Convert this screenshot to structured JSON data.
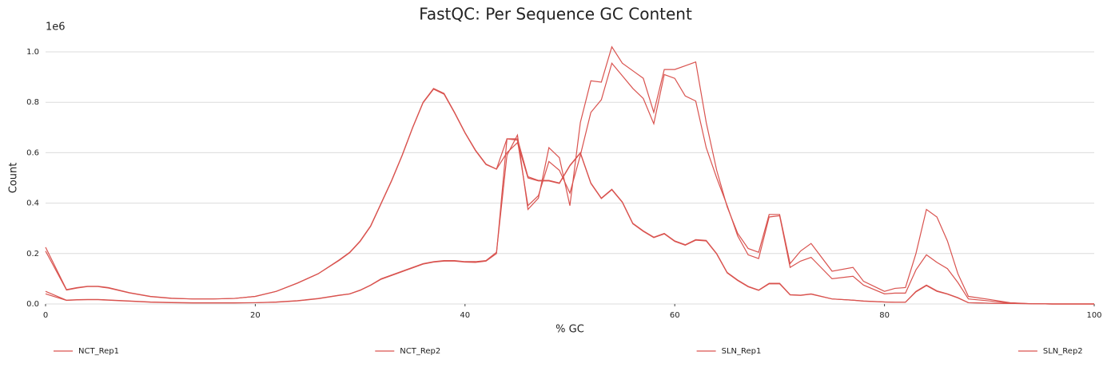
{
  "chart_data": {
    "type": "line",
    "title": "FastQC: Per Sequence GC Content",
    "xlabel": "% GC",
    "ylabel": "Count",
    "y_offset_label": "1e6",
    "x": [
      0,
      2,
      3,
      4,
      5,
      6,
      8,
      10,
      12,
      14,
      16,
      18,
      20,
      22,
      24,
      26,
      28,
      29,
      30,
      31,
      32,
      33,
      34,
      35,
      36,
      37,
      38,
      39,
      40,
      41,
      42,
      43,
      44,
      45,
      46,
      47,
      48,
      49,
      50,
      51,
      52,
      53,
      54,
      55,
      56,
      57,
      58,
      59,
      60,
      61,
      62,
      63,
      64,
      65,
      66,
      67,
      68,
      69,
      70,
      71,
      72,
      73,
      75,
      77,
      78,
      80,
      81,
      82,
      83,
      84,
      85,
      86,
      87,
      88,
      90,
      92,
      94,
      96,
      100
    ],
    "series": [
      {
        "name": "NCT_Rep1",
        "color": "#d9534f",
        "values": [
          0.225,
          0.057,
          0.065,
          0.07,
          0.07,
          0.065,
          0.045,
          0.03,
          0.023,
          0.02,
          0.02,
          0.022,
          0.03,
          0.05,
          0.083,
          0.12,
          0.175,
          0.205,
          0.25,
          0.31,
          0.4,
          0.49,
          0.59,
          0.7,
          0.8,
          0.855,
          0.835,
          0.76,
          0.68,
          0.61,
          0.555,
          0.535,
          0.655,
          0.655,
          0.505,
          0.49,
          0.49,
          0.48,
          0.55,
          0.6,
          0.48,
          0.42,
          0.455,
          0.405,
          0.32,
          0.29,
          0.265,
          0.28,
          0.25,
          0.235,
          0.255,
          0.252,
          0.2,
          0.125,
          0.095,
          0.07,
          0.055,
          0.082,
          0.082,
          0.037,
          0.035,
          0.04,
          0.02,
          0.015,
          0.012,
          0.008,
          0.007,
          0.007,
          0.05,
          0.075,
          0.052,
          0.04,
          0.025,
          0.005,
          0.003,
          0.002,
          0.001,
          0,
          0
        ]
      },
      {
        "name": "NCT_Rep2",
        "color": "#d9534f",
        "values": [
          0.21,
          0.055,
          0.063,
          0.069,
          0.069,
          0.063,
          0.044,
          0.029,
          0.022,
          0.02,
          0.02,
          0.022,
          0.03,
          0.05,
          0.082,
          0.12,
          0.173,
          0.203,
          0.248,
          0.308,
          0.398,
          0.488,
          0.588,
          0.698,
          0.798,
          0.852,
          0.832,
          0.758,
          0.678,
          0.608,
          0.553,
          0.535,
          0.6,
          0.64,
          0.5,
          0.488,
          0.488,
          0.478,
          0.548,
          0.598,
          0.478,
          0.418,
          0.453,
          0.403,
          0.318,
          0.288,
          0.263,
          0.278,
          0.248,
          0.233,
          0.253,
          0.25,
          0.198,
          0.123,
          0.093,
          0.068,
          0.054,
          0.08,
          0.08,
          0.036,
          0.034,
          0.039,
          0.02,
          0.015,
          0.011,
          0.008,
          0.007,
          0.007,
          0.048,
          0.073,
          0.05,
          0.039,
          0.024,
          0.005,
          0.003,
          0.002,
          0.001,
          0,
          0
        ]
      },
      {
        "name": "SLN_Rep1",
        "color": "#d9534f",
        "values": [
          0.05,
          0.015,
          0.017,
          0.018,
          0.018,
          0.016,
          0.012,
          0.008,
          0.006,
          0.005,
          0.005,
          0.005,
          0.005,
          0.008,
          0.013,
          0.022,
          0.035,
          0.04,
          0.055,
          0.075,
          0.1,
          0.115,
          0.13,
          0.145,
          0.16,
          0.168,
          0.172,
          0.172,
          0.168,
          0.168,
          0.172,
          0.205,
          0.59,
          0.67,
          0.375,
          0.42,
          0.62,
          0.58,
          0.39,
          0.72,
          0.885,
          0.88,
          1.02,
          0.955,
          0.925,
          0.895,
          0.76,
          0.93,
          0.93,
          0.945,
          0.96,
          0.72,
          0.53,
          0.385,
          0.28,
          0.22,
          0.205,
          0.355,
          0.355,
          0.16,
          0.21,
          0.24,
          0.13,
          0.145,
          0.09,
          0.05,
          0.062,
          0.065,
          0.2,
          0.375,
          0.345,
          0.25,
          0.12,
          0.03,
          0.018,
          0.005,
          0.001,
          0,
          0
        ]
      },
      {
        "name": "SLN_Rep2",
        "color": "#d9534f",
        "values": [
          0.04,
          0.014,
          0.016,
          0.017,
          0.017,
          0.015,
          0.011,
          0.007,
          0.005,
          0.004,
          0.004,
          0.004,
          0.005,
          0.007,
          0.012,
          0.021,
          0.034,
          0.04,
          0.054,
          0.074,
          0.098,
          0.113,
          0.128,
          0.143,
          0.158,
          0.166,
          0.17,
          0.17,
          0.166,
          0.165,
          0.17,
          0.2,
          0.655,
          0.65,
          0.39,
          0.43,
          0.565,
          0.53,
          0.44,
          0.59,
          0.76,
          0.81,
          0.955,
          0.905,
          0.855,
          0.815,
          0.715,
          0.91,
          0.895,
          0.825,
          0.805,
          0.62,
          0.5,
          0.39,
          0.27,
          0.195,
          0.18,
          0.345,
          0.35,
          0.145,
          0.17,
          0.185,
          0.1,
          0.11,
          0.075,
          0.04,
          0.043,
          0.043,
          0.135,
          0.195,
          0.165,
          0.14,
          0.085,
          0.02,
          0.012,
          0.004,
          0.001,
          0,
          0
        ]
      }
    ],
    "xlim": [
      0,
      100
    ],
    "xticks": [
      0,
      20,
      40,
      60,
      80,
      100
    ],
    "ylim": [
      0,
      1.05
    ],
    "yticks": [
      {
        "value": 0,
        "label": "0.0"
      },
      0.2,
      0.4,
      0.6,
      0.8,
      {
        "value": 1,
        "label": "1.0"
      }
    ],
    "grid": true,
    "legend": "bottom"
  }
}
